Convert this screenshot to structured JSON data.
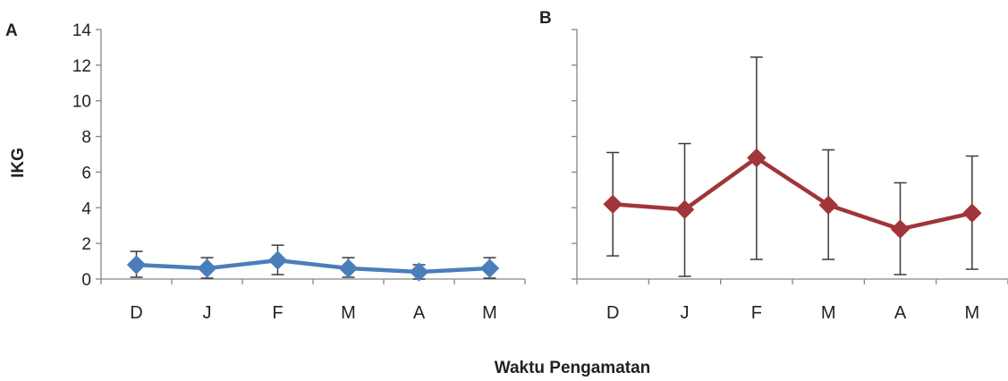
{
  "chart_data": [
    {
      "type": "line",
      "panel_label": "A",
      "title": "",
      "categories": [
        "D",
        "J",
        "F",
        "M",
        "A",
        "M"
      ],
      "series": [
        {
          "values": [
            0.8,
            0.6,
            1.05,
            0.6,
            0.4,
            0.6
          ],
          "error_low": [
            0.1,
            0.05,
            0.25,
            0.1,
            0.0,
            0.05
          ],
          "error_high": [
            1.55,
            1.2,
            1.9,
            1.2,
            0.8,
            1.2
          ],
          "color": "#4a7ebb",
          "marker": "diamond"
        }
      ],
      "ylim": [
        0,
        14
      ],
      "yticks": [
        0,
        2,
        4,
        6,
        8,
        10,
        12,
        14
      ],
      "ylabel": "IKG",
      "xlabel": "Waktu Pengamatan",
      "show_yticklabels": true,
      "grid": false
    },
    {
      "type": "line",
      "panel_label": "B",
      "title": "",
      "categories": [
        "D",
        "J",
        "F",
        "M",
        "A",
        "M"
      ],
      "series": [
        {
          "values": [
            4.2,
            3.9,
            6.8,
            4.15,
            2.8,
            3.7
          ],
          "error_low": [
            1.3,
            0.15,
            1.1,
            1.1,
            0.25,
            0.55
          ],
          "error_high": [
            7.1,
            7.6,
            12.45,
            7.25,
            5.4,
            6.9
          ],
          "color": "#a0353a",
          "marker": "diamond"
        }
      ],
      "ylim": [
        0,
        14
      ],
      "yticks": [
        0,
        2,
        4,
        6,
        8,
        10,
        12,
        14
      ],
      "show_yticklabels": false,
      "grid": false
    }
  ]
}
